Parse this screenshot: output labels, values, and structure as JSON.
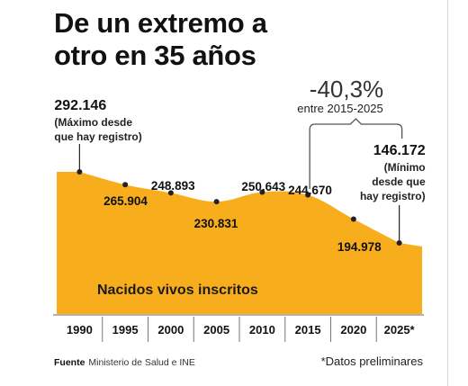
{
  "header": {
    "title_line1": "De un extremo a",
    "title_line2": "otro en 35 años"
  },
  "callout": {
    "change": "-40,3%",
    "change_period": "entre 2015-2025"
  },
  "chart_data": {
    "type": "area",
    "title": "De un extremo a otro en 35 años",
    "xlabel": "",
    "ylabel": "",
    "area_label": "Nacidos vivos inscritos",
    "categories": [
      "1990",
      "1995",
      "2000",
      "2005",
      "2010",
      "2015",
      "2020",
      "2025*"
    ],
    "values": [
      292146,
      265904,
      248893,
      230831,
      250643,
      244670,
      194978,
      146172
    ],
    "value_labels": [
      "292.146",
      "265.904",
      "248.893",
      "230.831",
      "250.643",
      "244.670",
      "194.978",
      "146.172"
    ],
    "annotations": [
      {
        "x": "1990",
        "text": "(Máximo desde que hay registro)"
      },
      {
        "x": "2025*",
        "text": "(Mínimo desde que hay registro)"
      }
    ],
    "fill_color": "#f8ad1c",
    "marker_color": "#222222",
    "grid": false
  },
  "footer": {
    "source_label": "Fuente",
    "source_text": "Ministerio de Salud e INE",
    "note": "*Datos preliminares"
  }
}
